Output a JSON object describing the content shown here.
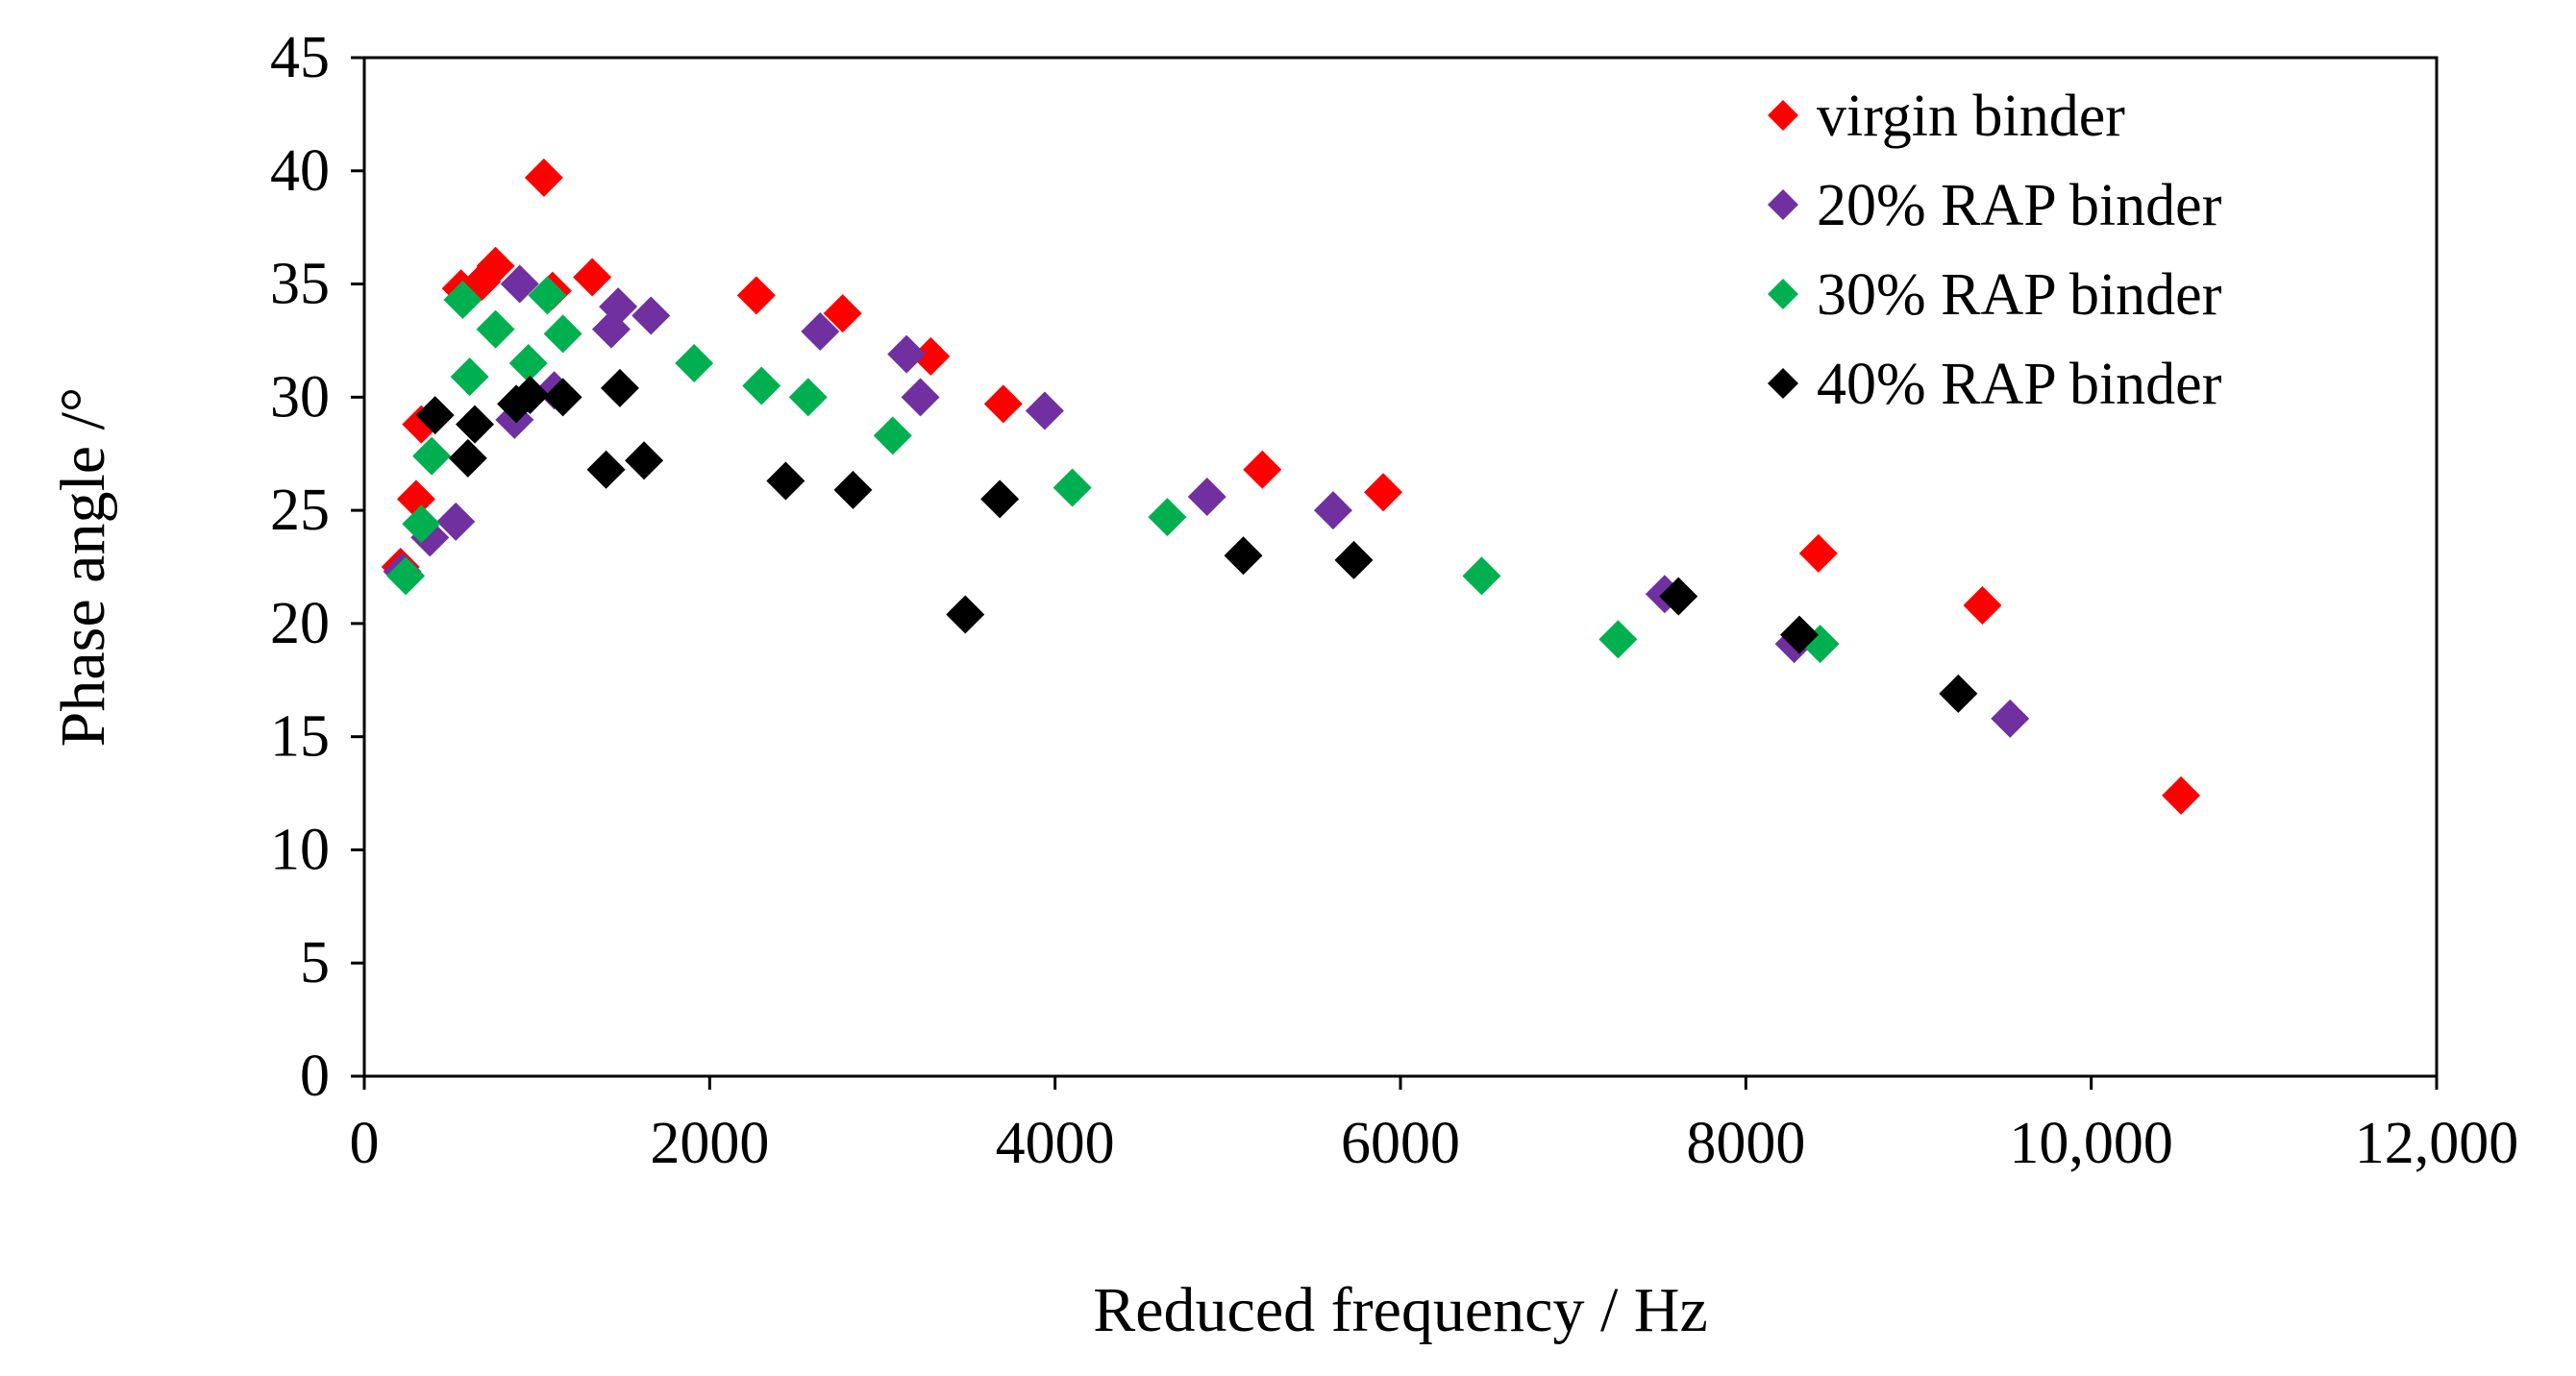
{
  "chart_data": {
    "type": "scatter",
    "title": "",
    "xlabel": "Reduced frequency / Hz",
    "ylabel": "Phase angle /°",
    "xlim": [
      0,
      12000
    ],
    "ylim": [
      0,
      45
    ],
    "xticks": [
      0,
      2000,
      4000,
      6000,
      8000,
      10000,
      12000
    ],
    "xtick_labels": [
      "0",
      "2000",
      "4000",
      "6000",
      "8000",
      "10,000",
      "12,000"
    ],
    "yticks": [
      0,
      5,
      10,
      15,
      20,
      25,
      30,
      35,
      40,
      45
    ],
    "ytick_labels": [
      "0",
      "5",
      "10",
      "15",
      "20",
      "25",
      "30",
      "35",
      "40",
      "45"
    ],
    "grid": false,
    "legend_position": "top-right",
    "marker": "diamond",
    "series": [
      {
        "name": "virgin binder",
        "color": "#ff0000",
        "points": [
          [
            210,
            22.5
          ],
          [
            300,
            25.5
          ],
          [
            330,
            28.8
          ],
          [
            560,
            34.8
          ],
          [
            680,
            35.1
          ],
          [
            760,
            35.8
          ],
          [
            1040,
            39.7
          ],
          [
            1090,
            34.7
          ],
          [
            1320,
            35.3
          ],
          [
            2270,
            34.5
          ],
          [
            2770,
            33.7
          ],
          [
            3280,
            31.8
          ],
          [
            3700,
            29.7
          ],
          [
            5200,
            26.8
          ],
          [
            5900,
            25.8
          ],
          [
            8420,
            23.1
          ],
          [
            9370,
            20.8
          ],
          [
            10520,
            12.4
          ]
        ]
      },
      {
        "name": "20% RAP binder",
        "color": "#7030a0",
        "points": [
          [
            220,
            22.3
          ],
          [
            380,
            23.8
          ],
          [
            530,
            24.5
          ],
          [
            870,
            29.0
          ],
          [
            900,
            35.0
          ],
          [
            1100,
            30.3
          ],
          [
            1430,
            33.0
          ],
          [
            1470,
            34.0
          ],
          [
            1660,
            33.6
          ],
          [
            2640,
            32.9
          ],
          [
            3140,
            31.9
          ],
          [
            3220,
            30.0
          ],
          [
            3940,
            29.4
          ],
          [
            4880,
            25.6
          ],
          [
            5610,
            25.0
          ],
          [
            7530,
            21.3
          ],
          [
            8280,
            19.1
          ],
          [
            9530,
            15.8
          ]
        ]
      },
      {
        "name": "30% RAP binder",
        "color": "#00b050",
        "points": [
          [
            240,
            22.1
          ],
          [
            330,
            24.4
          ],
          [
            390,
            27.4
          ],
          [
            570,
            34.3
          ],
          [
            610,
            30.9
          ],
          [
            760,
            33.0
          ],
          [
            950,
            31.5
          ],
          [
            1060,
            34.5
          ],
          [
            1150,
            32.8
          ],
          [
            1910,
            31.5
          ],
          [
            2300,
            30.5
          ],
          [
            2570,
            30.0
          ],
          [
            3060,
            28.3
          ],
          [
            4100,
            26.0
          ],
          [
            4650,
            24.7
          ],
          [
            6470,
            22.1
          ],
          [
            7260,
            19.3
          ],
          [
            8430,
            19.1
          ]
        ]
      },
      {
        "name": "40% RAP binder",
        "color": "#000000",
        "points": [
          [
            410,
            29.2
          ],
          [
            600,
            27.3
          ],
          [
            640,
            28.8
          ],
          [
            880,
            29.7
          ],
          [
            960,
            30.1
          ],
          [
            1150,
            30.0
          ],
          [
            1400,
            26.8
          ],
          [
            1480,
            30.4
          ],
          [
            1620,
            27.2
          ],
          [
            2440,
            26.3
          ],
          [
            2830,
            25.9
          ],
          [
            3480,
            20.4
          ],
          [
            3680,
            25.5
          ],
          [
            5090,
            23.0
          ],
          [
            5730,
            22.8
          ],
          [
            7610,
            21.2
          ],
          [
            8310,
            19.5
          ],
          [
            9230,
            16.9
          ]
        ]
      }
    ]
  }
}
